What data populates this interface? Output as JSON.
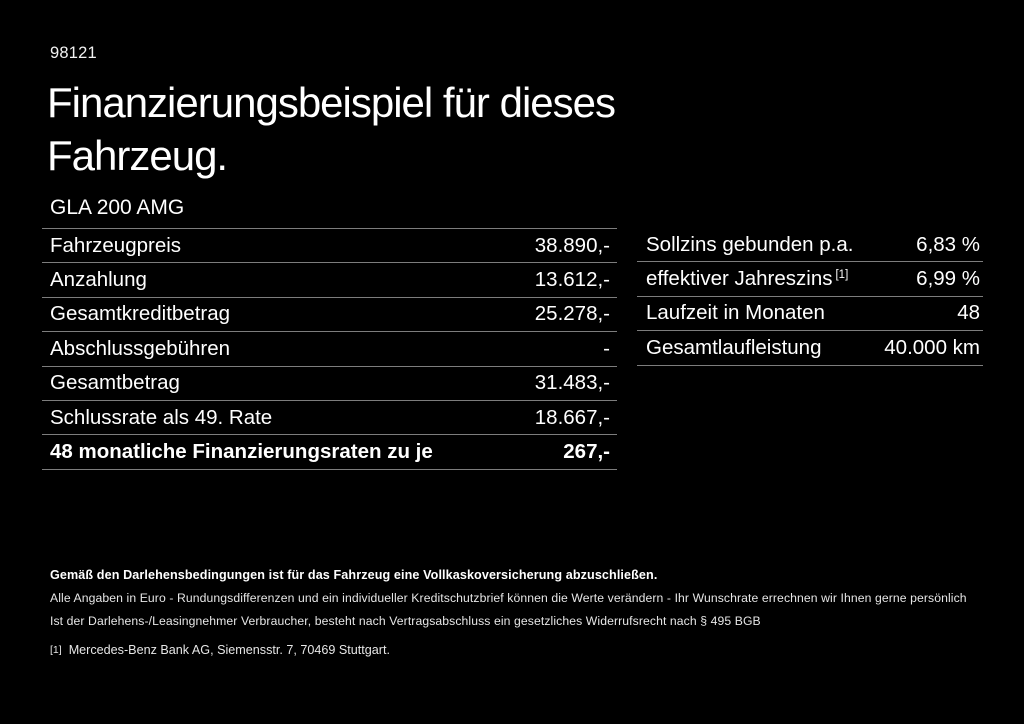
{
  "page": {
    "ref_number": "98121",
    "title_line1": "Finanzierungsbeispiel für dieses",
    "title_line2": "Fahrzeug.",
    "model": "GLA 200 AMG"
  },
  "left_table": {
    "rows": [
      {
        "label": "Fahrzeugpreis",
        "value": "38.890,-"
      },
      {
        "label": "Anzahlung",
        "value": "13.612,-"
      },
      {
        "label": "Gesamtkreditbetrag",
        "value": "25.278,-"
      },
      {
        "label": "Abschlussgebühren",
        "value": "-"
      },
      {
        "label": "Gesamtbetrag",
        "value": "31.483,-"
      },
      {
        "label": "Schlussrate als 49. Rate",
        "value": "18.667,-"
      },
      {
        "label": "48 monatliche Finanzierungsraten zu je",
        "value": "267,-"
      }
    ]
  },
  "right_table": {
    "rows": [
      {
        "label": "Sollzins gebunden p.a.",
        "value": "6,83 %"
      },
      {
        "label": "effektiver Jahreszins",
        "label_sup": "[1]",
        "value": "6,99 %"
      },
      {
        "label": "Laufzeit in Monaten",
        "value": "48"
      },
      {
        "label": "Gesamtlaufleistung",
        "value": "40.000 km"
      }
    ]
  },
  "footer": {
    "bold_note": "Gemäß den Darlehensbedingungen ist für das Fahrzeug eine Vollkaskoversicherung abzuschließen.",
    "note_line1": "Alle Angaben in Euro - Rundungsdifferenzen und ein individueller Kreditschutzbrief können die Werte verändern - Ihr Wunschrate errechnen wir Ihnen gerne persönlich",
    "note_line2": "Ist der Darlehens-/Leasingnehmer Verbraucher, besteht nach Vertragsabschluss ein gesetzliches Widerrufsrecht nach § 495 BGB",
    "footnote_marker": "[1]",
    "footnote_text": "Mercedes-Benz Bank AG, Siemensstr. 7, 70469 Stuttgart."
  },
  "colors": {
    "background": "#000000",
    "text": "#ffffff",
    "divider": "#7d7d7d"
  }
}
